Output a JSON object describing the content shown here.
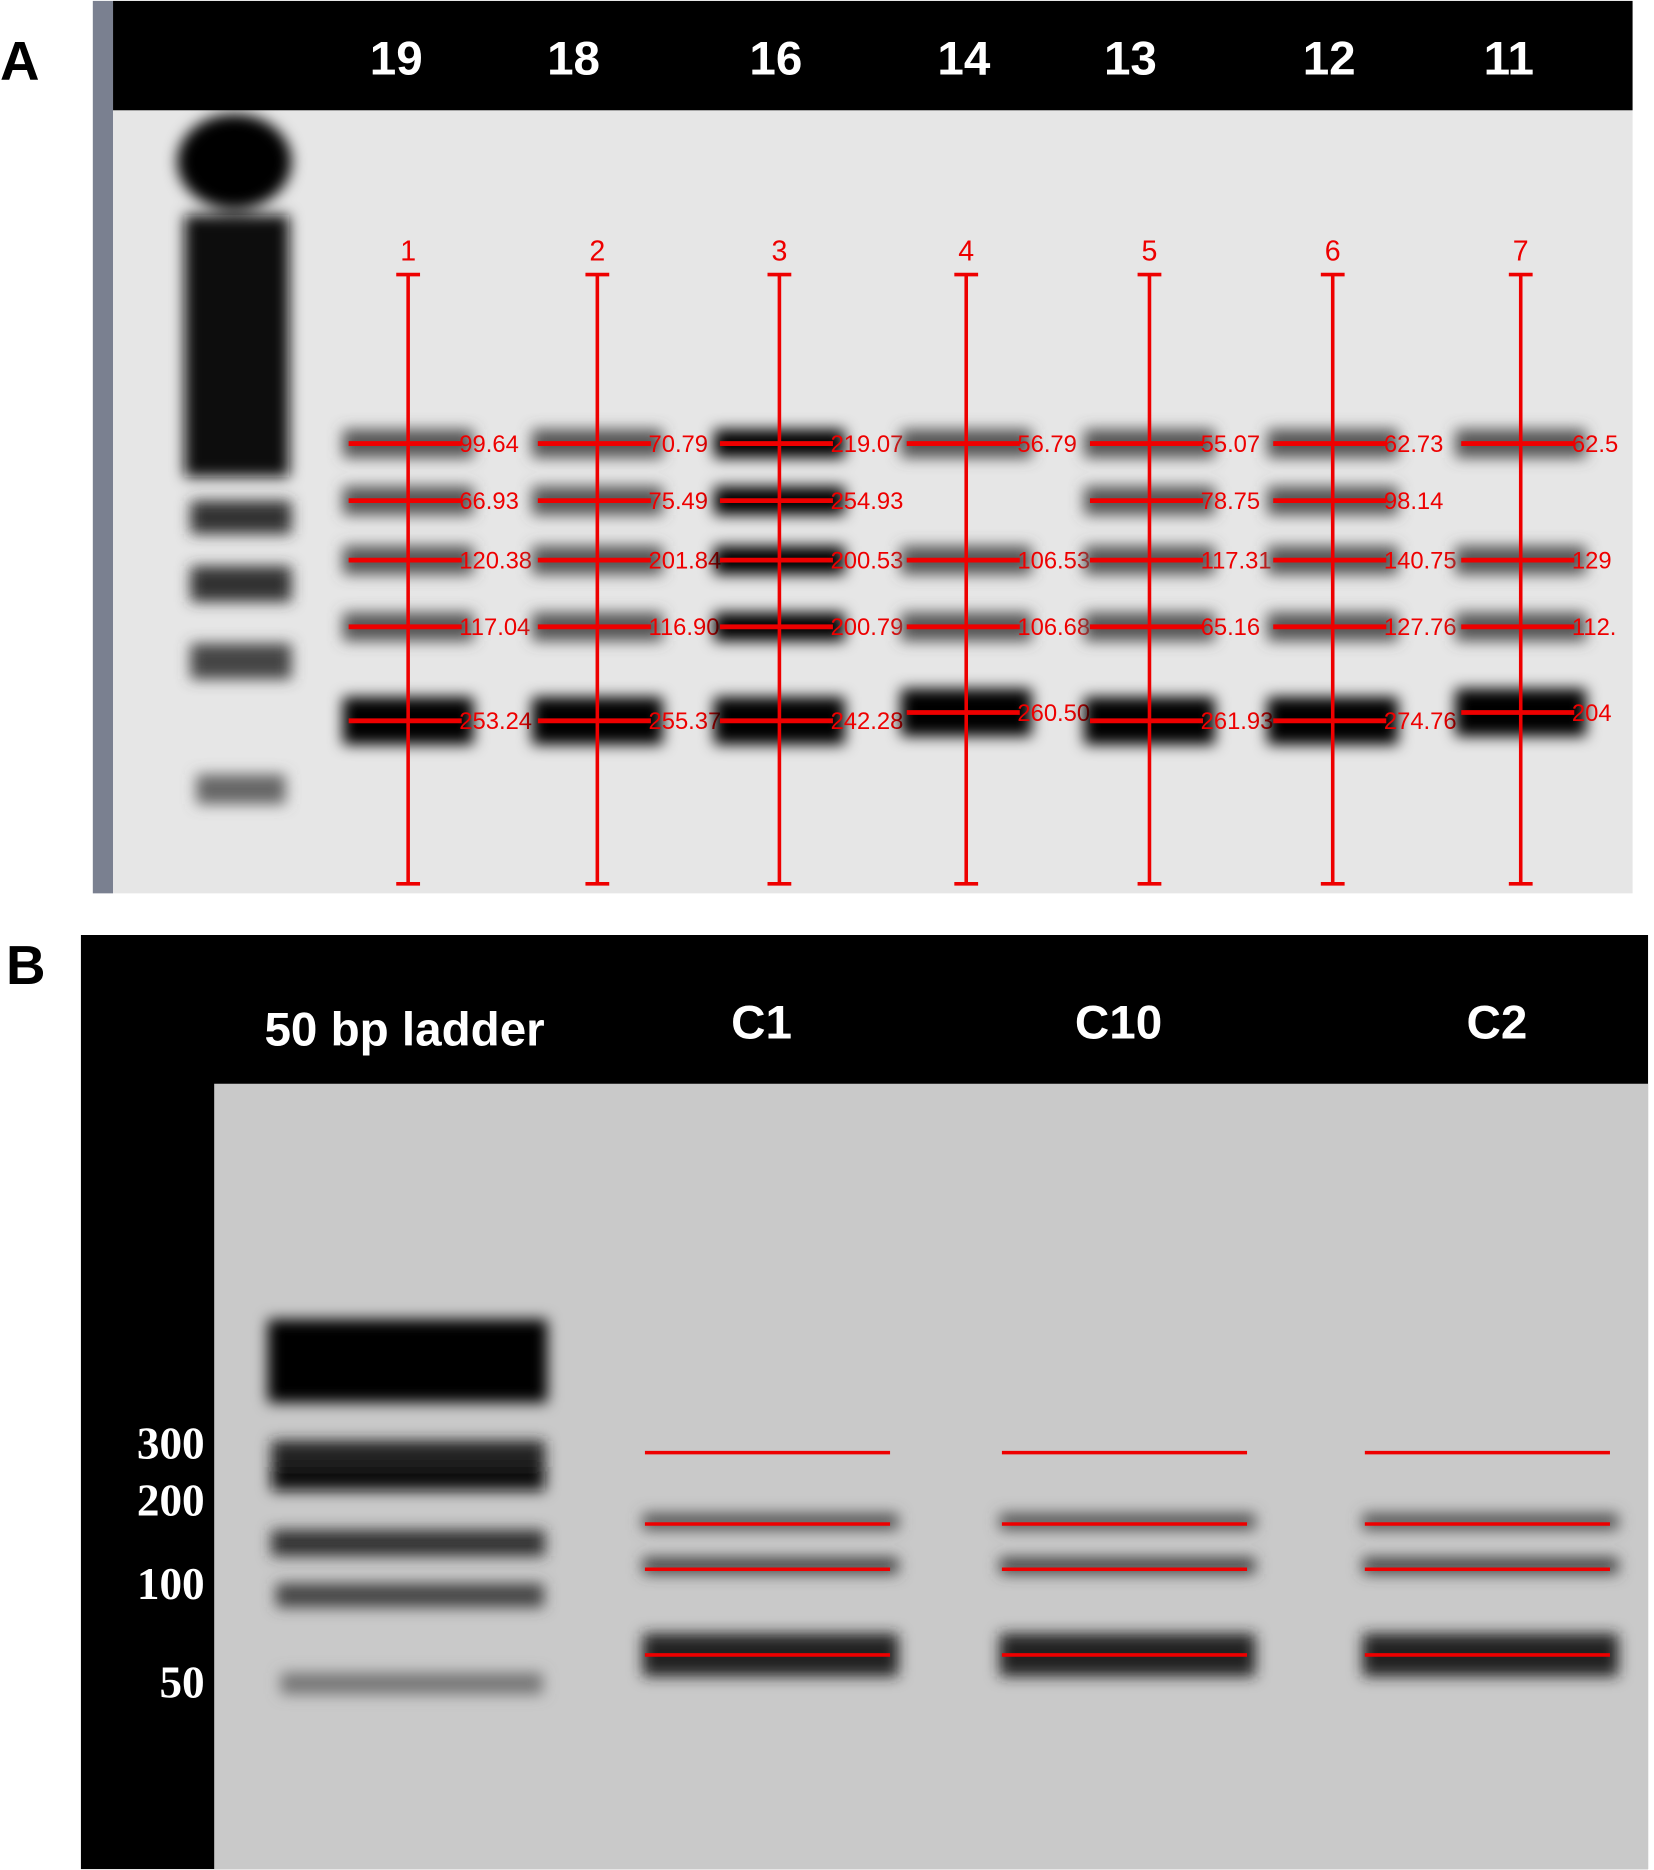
{
  "panel_a": {
    "label": "A",
    "lanes": [
      {
        "header": "19",
        "number": "1",
        "bands": [
          "99.64",
          "66.93",
          "120.38",
          "117.04",
          "253.24"
        ]
      },
      {
        "header": "18",
        "number": "2",
        "bands": [
          "70.79",
          "75.49",
          "201.84",
          "116.90",
          "255.37"
        ]
      },
      {
        "header": "16",
        "number": "3",
        "bands": [
          "219.07",
          "254.93",
          "200.53",
          "200.79",
          "242.28"
        ]
      },
      {
        "header": "14",
        "number": "4",
        "bands": [
          "56.79",
          "106.53",
          "106.68",
          "260.50"
        ]
      },
      {
        "header": "13",
        "number": "5",
        "bands": [
          "55.07",
          "78.75",
          "117.31",
          "65.16",
          "261.93"
        ]
      },
      {
        "header": "12",
        "number": "6",
        "bands": [
          "62.73",
          "98.14",
          "140.75",
          "127.76",
          "274.76"
        ]
      },
      {
        "header": "11",
        "number": "7",
        "bands": [
          "62.5",
          "129",
          "112.",
          "204"
        ]
      }
    ]
  },
  "panel_b": {
    "label": "B",
    "ladder_label": "50 bp ladder",
    "lanes": [
      "C1",
      "C10",
      "C2"
    ],
    "markers": [
      "300",
      "200",
      "100",
      "50"
    ]
  }
}
